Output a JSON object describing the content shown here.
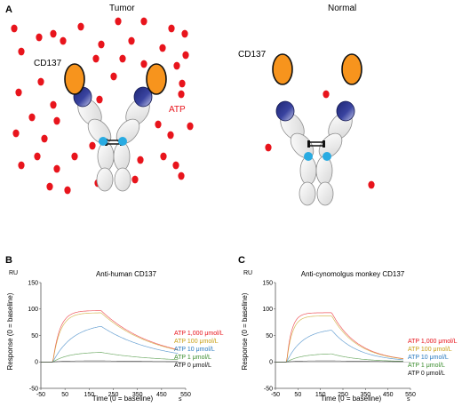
{
  "colors": {
    "atp_dot": "#e8141c",
    "cd137_fill": "#f7941d",
    "fab_dark": "#1c2473",
    "fab_light": "#a9afd9",
    "antibody_body": "#e9e9e9",
    "antibody_stroke": "#8c8c8c",
    "cyan_site": "#29abe2",
    "atp_label": "#e8141c",
    "series_1000": "#e8141c",
    "series_100": "#c8a017",
    "series_10": "#2b7bc0",
    "series_1": "#3c8d2f",
    "series_0": "#111111"
  },
  "panelA": {
    "letter": "A",
    "tumor_title": "Tumor",
    "normal_title": "Normal",
    "cd137_tumor": "CD137",
    "cd137_normal": "CD137",
    "atp_label": "ATP"
  },
  "panelB": {
    "letter": "B"
  },
  "panelC": {
    "letter": "C"
  },
  "chart_data": [
    {
      "type": "line",
      "title": "Anti-human CD137",
      "xlabel": "Time (0 = baseline)",
      "ylabel": "Response (0 = baseline)",
      "yunit": "RU",
      "xunit": "s",
      "xlim": [
        -50,
        550
      ],
      "ylim": [
        -50,
        150
      ],
      "xticks": [
        -50,
        50,
        150,
        250,
        350,
        450,
        550
      ],
      "yticks": [
        -50,
        0,
        50,
        100,
        150
      ],
      "assoc": [
        0,
        200
      ],
      "series": [
        {
          "name": "ATP 1,000 μmol/L",
          "color": "#e8141c",
          "plateau": 97,
          "kon": 0.035,
          "koff": 0.0045
        },
        {
          "name": "ATP 100 μmol/L",
          "color": "#c8a017",
          "plateau": 93,
          "kon": 0.032,
          "koff": 0.0045
        },
        {
          "name": "ATP 10 μmol/L",
          "color": "#2b7bc0",
          "plateau": 74,
          "kon": 0.012,
          "koff": 0.0045
        },
        {
          "name": "ATP 1 μmol/L",
          "color": "#3c8d2f",
          "plateau": 19,
          "kon": 0.015,
          "koff": 0.0045
        },
        {
          "name": "ATP 0 μmol/L",
          "color": "#111111",
          "plateau": 2,
          "kon": 0.02,
          "koff": 0.004
        }
      ]
    },
    {
      "type": "line",
      "title": "Anti-cynomolgus monkey CD137",
      "xlabel": "Time (0 = baseline)",
      "ylabel": "Response (0 = baseline)",
      "yunit": "RU",
      "xunit": "s",
      "xlim": [
        -50,
        550
      ],
      "ylim": [
        -50,
        150
      ],
      "xticks": [
        -50,
        50,
        150,
        250,
        350,
        450,
        550
      ],
      "yticks": [
        -50,
        0,
        50,
        100,
        150
      ],
      "assoc": [
        0,
        200
      ],
      "series": [
        {
          "name": "ATP 1,000 μmol/L",
          "color": "#e8141c",
          "plateau": 93,
          "kon": 0.045,
          "koff": 0.0085
        },
        {
          "name": "ATP 100 μmol/L",
          "color": "#c8a017",
          "plateau": 87,
          "kon": 0.04,
          "koff": 0.0085
        },
        {
          "name": "ATP 10 μmol/L",
          "color": "#2b7bc0",
          "plateau": 64,
          "kon": 0.014,
          "koff": 0.0085
        },
        {
          "name": "ATP 1 μmol/L",
          "color": "#3c8d2f",
          "plateau": 16,
          "kon": 0.015,
          "koff": 0.008
        },
        {
          "name": "ATP 0 μmol/L",
          "color": "#111111",
          "plateau": 2,
          "kon": 0.02,
          "koff": 0.004
        }
      ]
    }
  ]
}
